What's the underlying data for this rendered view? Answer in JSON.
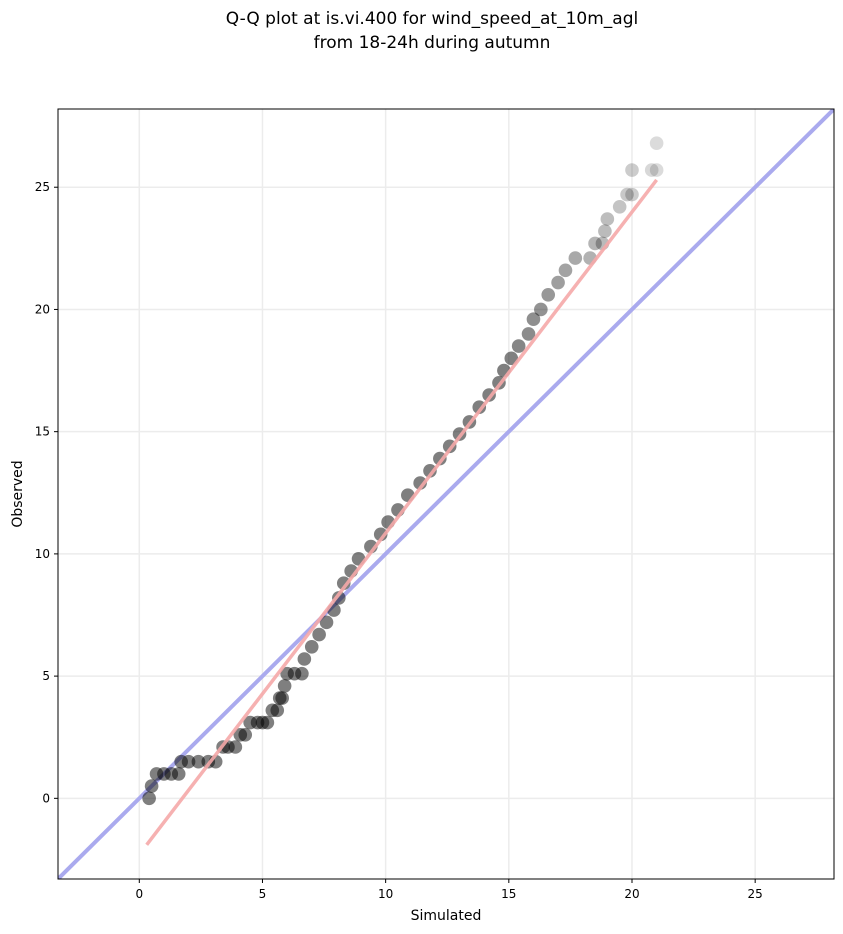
{
  "chart_data": {
    "type": "scatter",
    "title": [
      "Q-Q plot at is.vi.400 for wind_speed_at_10m_agl",
      "from 18-24h during autumn"
    ],
    "xlabel": "Simulated",
    "ylabel": "Observed",
    "xlim": [
      -3.3,
      28.2
    ],
    "ylim": [
      -3.3,
      28.2
    ],
    "x_ticks": [
      0,
      5,
      10,
      15,
      20,
      25
    ],
    "y_ticks": [
      0,
      5,
      10,
      15,
      20,
      25
    ],
    "x_tick_labels": [
      "0",
      "5",
      "10",
      "15",
      "20",
      "25"
    ],
    "y_tick_labels": [
      "0",
      "5",
      "10",
      "15",
      "20",
      "25"
    ],
    "grid": true,
    "colors": {
      "points": "#000000",
      "identity_line": "#aaaaee",
      "fit_line": "#f5a9a9",
      "grid": "#ececec"
    },
    "reference_lines": {
      "identity": {
        "x": [
          -3.3,
          28.2
        ],
        "y": [
          -3.3,
          28.2
        ]
      },
      "fit": {
        "x": [
          0.3,
          21.0
        ],
        "y": [
          -1.9,
          25.3
        ]
      }
    },
    "points": [
      [
        0.4,
        0.0
      ],
      [
        0.5,
        0.5
      ],
      [
        0.7,
        1.0
      ],
      [
        1.0,
        1.0
      ],
      [
        1.3,
        1.0
      ],
      [
        1.6,
        1.0
      ],
      [
        1.7,
        1.5
      ],
      [
        2.0,
        1.5
      ],
      [
        2.4,
        1.5
      ],
      [
        2.8,
        1.5
      ],
      [
        3.1,
        1.5
      ],
      [
        3.4,
        2.1
      ],
      [
        3.6,
        2.1
      ],
      [
        3.9,
        2.1
      ],
      [
        4.1,
        2.6
      ],
      [
        4.3,
        2.6
      ],
      [
        4.5,
        3.1
      ],
      [
        4.8,
        3.1
      ],
      [
        5.0,
        3.1
      ],
      [
        5.2,
        3.1
      ],
      [
        5.4,
        3.6
      ],
      [
        5.6,
        3.6
      ],
      [
        5.7,
        4.1
      ],
      [
        5.8,
        4.1
      ],
      [
        5.9,
        4.6
      ],
      [
        6.0,
        5.1
      ],
      [
        6.3,
        5.1
      ],
      [
        6.6,
        5.1
      ],
      [
        6.7,
        5.7
      ],
      [
        7.0,
        6.2
      ],
      [
        7.3,
        6.7
      ],
      [
        7.6,
        7.2
      ],
      [
        7.9,
        7.7
      ],
      [
        8.1,
        8.2
      ],
      [
        8.3,
        8.8
      ],
      [
        8.6,
        9.3
      ],
      [
        8.9,
        9.8
      ],
      [
        9.4,
        10.3
      ],
      [
        9.8,
        10.8
      ],
      [
        10.1,
        11.3
      ],
      [
        10.5,
        11.8
      ],
      [
        10.9,
        12.4
      ],
      [
        11.4,
        12.9
      ],
      [
        11.8,
        13.4
      ],
      [
        12.2,
        13.9
      ],
      [
        12.6,
        14.4
      ],
      [
        13.0,
        14.9
      ],
      [
        13.4,
        15.4
      ],
      [
        13.8,
        16.0
      ],
      [
        14.2,
        16.5
      ],
      [
        14.6,
        17.0
      ],
      [
        14.8,
        17.5
      ],
      [
        15.1,
        18.0
      ],
      [
        15.4,
        18.5
      ],
      [
        15.8,
        19.0
      ],
      [
        16.0,
        19.6
      ],
      [
        16.3,
        20.0
      ],
      [
        16.6,
        20.6
      ],
      [
        17.0,
        21.1
      ],
      [
        17.3,
        21.6
      ],
      [
        17.7,
        22.1
      ],
      [
        18.3,
        22.1
      ],
      [
        18.5,
        22.7
      ],
      [
        18.8,
        22.7
      ],
      [
        18.9,
        23.2
      ],
      [
        19.0,
        23.7
      ],
      [
        19.5,
        24.2
      ],
      [
        19.8,
        24.7
      ],
      [
        20.0,
        24.7
      ],
      [
        20.0,
        25.7
      ],
      [
        20.8,
        25.7
      ],
      [
        21.0,
        25.7
      ],
      [
        21.0,
        26.8
      ]
    ]
  }
}
